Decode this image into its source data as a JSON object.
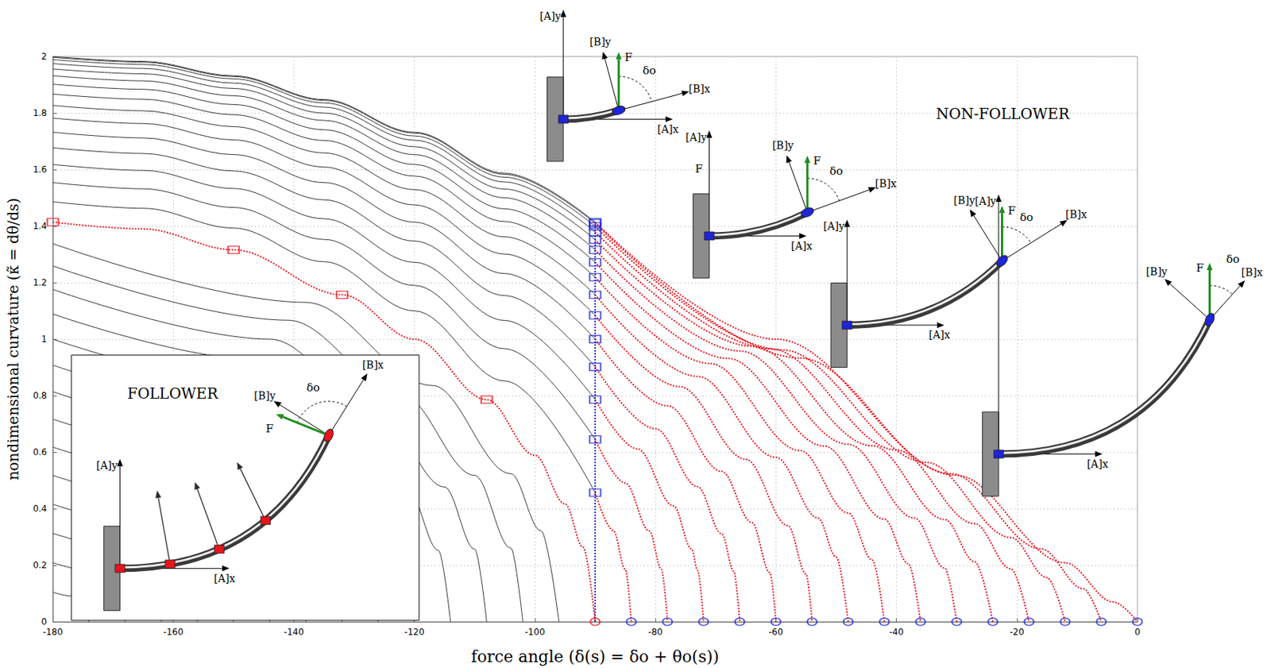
{
  "chart_data": {
    "type": "line",
    "x_label": "force angle (δ(s) = δo + θo(s))",
    "y_label": "nondimensional curvature (κ̃ = dθ/ds)",
    "xlim": [
      -180,
      0
    ],
    "xticks": [
      -180,
      -160,
      -140,
      -120,
      -100,
      -80,
      -60,
      -40,
      -20,
      0
    ],
    "ylim": [
      0,
      2
    ],
    "yticks": [
      0,
      0.2,
      0.4,
      0.6,
      0.8,
      1,
      1.2,
      1.4,
      1.6,
      1.8,
      2
    ],
    "grid": true,
    "annotations": {
      "non_follower": "NON-FOLLOWER",
      "follower": "FOLLOWER"
    },
    "diagram_labels": {
      "A_y": "[A]y",
      "A_x": "[A]x",
      "B_y": "[B]y",
      "B_x": "[B]x",
      "force": "F",
      "angle": "δo"
    },
    "series": [
      {
        "type": "line",
        "color": "#333333",
        "line_style": "solid",
        "marker": "none",
        "x": [
          -180,
          -165,
          -150,
          -135,
          -120,
          -105,
          -90
        ],
        "values": [
          2.0,
          1.983,
          1.932,
          1.848,
          1.732,
          1.587,
          1.414
        ]
      },
      {
        "type": "line",
        "color": "#333333",
        "line_style": "solid",
        "marker": "none",
        "x": [
          -180,
          -165,
          -150,
          -135,
          -120,
          -105,
          -90
        ],
        "values": [
          1.997,
          1.98,
          1.929,
          1.845,
          1.729,
          1.583,
          1.41
        ]
      },
      {
        "type": "line",
        "color": "#333333",
        "line_style": "solid",
        "marker": "none",
        "x": [
          -180,
          -165,
          -150,
          -135,
          -120,
          -105,
          -90
        ],
        "values": [
          1.989,
          1.972,
          1.921,
          1.836,
          1.719,
          1.573,
          1.399
        ]
      },
      {
        "type": "line",
        "color": "#333333",
        "line_style": "solid",
        "marker": "none",
        "x": [
          -180,
          -165,
          -150,
          -135,
          -120,
          -105,
          -90
        ],
        "values": [
          1.975,
          1.958,
          1.906,
          1.821,
          1.704,
          1.556,
          1.379
        ]
      },
      {
        "type": "line",
        "color": "#333333",
        "line_style": "solid",
        "marker": "none",
        "x": [
          -180,
          -165,
          -150,
          -135,
          -120,
          -105,
          -90
        ],
        "values": [
          1.956,
          1.939,
          1.887,
          1.8,
          1.681,
          1.531,
          1.352
        ]
      },
      {
        "type": "line",
        "color": "#333333",
        "line_style": "solid",
        "marker": "none",
        "x": [
          -180,
          -165,
          -150,
          -135,
          -120,
          -105,
          -90
        ],
        "values": [
          1.932,
          1.914,
          1.861,
          1.774,
          1.653,
          1.5,
          1.316
        ]
      },
      {
        "type": "line",
        "color": "#333333",
        "line_style": "solid",
        "marker": "none",
        "x": [
          -180,
          -165,
          -150,
          -135,
          -120,
          -105,
          -90
        ],
        "values": [
          1.902,
          1.884,
          1.83,
          1.741,
          1.618,
          1.461,
          1.272
        ]
      },
      {
        "type": "line",
        "color": "#333333",
        "line_style": "solid",
        "marker": "none",
        "x": [
          -180,
          -165,
          -150,
          -135,
          -120,
          -105,
          -90
        ],
        "values": [
          1.867,
          1.849,
          1.794,
          1.703,
          1.577,
          1.416,
          1.219
        ]
      },
      {
        "type": "line",
        "color": "#333333",
        "line_style": "solid",
        "marker": "none",
        "x": [
          -180,
          -165,
          -150,
          -135,
          -120,
          -105,
          -90
        ],
        "values": [
          1.827,
          1.808,
          1.752,
          1.659,
          1.529,
          1.362,
          1.157
        ]
      },
      {
        "type": "line",
        "color": "#333333",
        "line_style": "solid",
        "marker": "none",
        "x": [
          -180,
          -165,
          -150,
          -135,
          -120,
          -105,
          -90
        ],
        "values": [
          1.782,
          1.763,
          1.705,
          1.609,
          1.475,
          1.301,
          1.084
        ]
      },
      {
        "type": "line",
        "color": "#333333",
        "line_style": "solid",
        "marker": "none",
        "x": [
          -180,
          -165,
          -150,
          -135,
          -120,
          -105,
          -90
        ],
        "values": [
          1.732,
          1.712,
          1.653,
          1.554,
          1.414,
          1.232,
          1.0
        ]
      },
      {
        "type": "line",
        "color": "#333333",
        "line_style": "solid",
        "marker": "none",
        "x": [
          -180,
          -165,
          -150,
          -135,
          -120,
          -105,
          -90
        ],
        "values": [
          1.677,
          1.657,
          1.595,
          1.493,
          1.347,
          1.154,
          0.902
        ]
      },
      {
        "type": "line",
        "color": "#333333",
        "line_style": "solid",
        "marker": "none",
        "x": [
          -180,
          -165,
          -150,
          -135,
          -120,
          -105,
          -90
        ],
        "values": [
          1.618,
          1.597,
          1.533,
          1.426,
          1.272,
          1.066,
          0.786
        ]
      },
      {
        "type": "line",
        "color": "#333333",
        "line_style": "solid",
        "marker": "none",
        "x": [
          -180,
          -165,
          -150,
          -135,
          -120,
          -105,
          -90
        ],
        "values": [
          1.554,
          1.532,
          1.466,
          1.353,
          1.19,
          0.966,
          0.645
        ]
      },
      {
        "type": "line",
        "color": "#333333",
        "line_style": "solid",
        "marker": "none",
        "x": [
          -180,
          -165,
          -150,
          -135,
          -120,
          -105,
          -90
        ],
        "values": [
          1.486,
          1.463,
          1.393,
          1.274,
          1.1,
          0.852,
          0.457
        ]
      },
      {
        "type": "line",
        "color": "#333333",
        "line_style": "solid",
        "marker": "none",
        "x": [
          -180,
          -138,
          -117,
          -104,
          -99,
          -96
        ],
        "values": [
          1.338,
          1.13,
          0.836,
          0.524,
          0.322,
          0
        ]
      },
      {
        "type": "line",
        "color": "#333333",
        "line_style": "solid",
        "marker": "none",
        "x": [
          -180,
          -141,
          -122,
          -110,
          -104,
          -102
        ],
        "values": [
          1.259,
          1.067,
          0.802,
          0.518,
          0.261,
          0
        ]
      },
      {
        "type": "line",
        "color": "#333333",
        "line_style": "solid",
        "marker": "none",
        "x": [
          -180,
          -144,
          -126,
          -115,
          -110,
          -108
        ],
        "values": [
          1.176,
          1.0,
          0.747,
          0.477,
          0.257,
          0
        ]
      },
      {
        "type": "line",
        "color": "#333333",
        "line_style": "solid",
        "marker": "none",
        "x": [
          -180,
          -147,
          -130,
          -121,
          -116,
          -114
        ],
        "values": [
          1.089,
          0.93,
          0.687,
          0.465,
          0.252,
          0
        ]
      },
      {
        "type": "line",
        "color": "#333333",
        "line_style": "solid",
        "marker": "none",
        "x": [
          -180,
          -150,
          -135,
          -126,
          -122,
          -120
        ],
        "values": [
          1.0,
          0.856,
          0.644,
          0.419,
          0.245,
          0
        ]
      },
      {
        "type": "line",
        "color": "#333333",
        "line_style": "solid",
        "marker": "none",
        "x": [
          -180,
          -153,
          -140,
          -131,
          -128,
          -126
        ],
        "values": [
          0.908,
          0.779,
          0.597,
          0.37,
          0.236,
          0
        ]
      },
      {
        "type": "line",
        "color": "#333333",
        "line_style": "solid",
        "marker": "none",
        "x": [
          -180,
          -156,
          -144,
          -137,
          -134,
          -132
        ],
        "values": [
          0.814,
          0.699,
          0.529,
          0.353,
          0.226,
          0
        ]
      },
      {
        "type": "line",
        "color": "#333333",
        "line_style": "solid",
        "marker": "none",
        "x": [
          -180,
          -159,
          -148,
          -142,
          -139,
          -138
        ],
        "values": [
          0.717,
          0.617,
          0.458,
          0.3,
          0.152,
          0
        ]
      },
      {
        "type": "line",
        "color": "#333333",
        "line_style": "solid",
        "marker": "none",
        "x": [
          -180,
          -162,
          -153,
          -148,
          -145,
          -144
        ],
        "values": [
          0.618,
          0.533,
          0.405,
          0.279,
          0.143,
          0
        ]
      },
      {
        "type": "line",
        "color": "#333333",
        "line_style": "solid",
        "marker": "none",
        "x": [
          -180,
          -165,
          -157,
          -153,
          -151,
          -150
        ],
        "values": [
          0.518,
          0.447,
          0.33,
          0.224,
          0.131,
          0
        ]
      },
      {
        "type": "line",
        "color": "#333333",
        "line_style": "solid",
        "marker": "none",
        "x": [
          -180,
          -168,
          -162,
          -158,
          -157,
          -156
        ],
        "values": [
          0.416,
          0.359,
          0.274,
          0.166,
          0.118,
          0
        ]
      },
      {
        "type": "line",
        "color": "#333333",
        "line_style": "solid",
        "marker": "none",
        "x": [
          -180,
          -171,
          -166,
          -164,
          -163,
          -162
        ],
        "values": [
          0.313,
          0.271,
          0.196,
          0.143,
          0.102,
          0
        ]
      },
      {
        "type": "line",
        "color": "#333333",
        "line_style": "solid",
        "marker": "none",
        "x": [
          -180,
          -174,
          -171,
          -169,
          -168
        ],
        "values": [
          0.209,
          0.181,
          0.139,
          0.084,
          0
        ]
      },
      {
        "type": "line",
        "color": "#333333",
        "line_style": "solid",
        "marker": "none",
        "x": [
          -180,
          -177,
          -175,
          -174
        ],
        "values": [
          0.105,
          0.091,
          0.058,
          0
        ]
      },
      {
        "type": "line",
        "color": "#e8141c",
        "line_style": "dotted",
        "marker": "none",
        "x": [
          -180,
          -165,
          -150,
          -132,
          -120,
          -108,
          -100,
          -95,
          -92,
          -90
        ],
        "values": [
          1.414,
          1.39,
          1.316,
          1.157,
          1.0,
          0.786,
          0.589,
          0.417,
          0.264,
          0
        ]
      },
      {
        "type": "line",
        "color": "#e8141c",
        "line_style": "dotted",
        "marker": "none",
        "x": [
          -90,
          -60,
          -30,
          -12,
          -4,
          0
        ],
        "values": [
          1.414,
          1.0,
          0.518,
          0.209,
          0.07,
          0
        ]
      },
      {
        "type": "line",
        "color": "#e8141c",
        "line_style": "dotted",
        "marker": "none",
        "x": [
          -90,
          -56,
          -31,
          -16,
          -9,
          -6
        ],
        "values": [
          1.41,
          0.933,
          0.524,
          0.258,
          0.117,
          0
        ]
      },
      {
        "type": "line",
        "color": "#e8141c",
        "line_style": "dotted",
        "marker": "none",
        "x": [
          -90,
          -59,
          -35,
          -21,
          -15,
          -12
        ],
        "values": [
          1.399,
          0.962,
          0.564,
          0.298,
          0.156,
          0
        ]
      },
      {
        "type": "line",
        "color": "#e8141c",
        "line_style": "dotted",
        "marker": "none",
        "x": [
          -90,
          -61,
          -40,
          -27,
          -21,
          -18
        ],
        "values": [
          1.379,
          0.966,
          0.608,
          0.347,
          0.187,
          0
        ]
      },
      {
        "type": "line",
        "color": "#e8141c",
        "line_style": "dotted",
        "marker": "none",
        "x": [
          -90,
          -64,
          -44,
          -32,
          -27,
          -24
        ],
        "values": [
          1.352,
          0.975,
          0.623,
          0.362,
          0.212,
          0
        ]
      },
      {
        "type": "line",
        "color": "#e8141c",
        "line_style": "dotted",
        "marker": "none",
        "x": [
          -90,
          -66,
          -48,
          -37,
          -32,
          -30
        ],
        "values": [
          1.316,
          0.958,
          0.628,
          0.367,
          0.19,
          0
        ]
      },
      {
        "type": "line",
        "color": "#e8141c",
        "line_style": "dotted",
        "marker": "none",
        "x": [
          -90,
          -68,
          -52,
          -42,
          -38,
          -36
        ],
        "values": [
          1.272,
          0.932,
          0.622,
          0.363,
          0.205,
          0
        ]
      },
      {
        "type": "line",
        "color": "#e8141c",
        "line_style": "dotted",
        "marker": "none",
        "x": [
          -90,
          -71,
          -56,
          -48,
          -44,
          -42
        ],
        "values": [
          1.219,
          0.914,
          0.606,
          0.385,
          0.218,
          0
        ]
      },
      {
        "type": "line",
        "color": "#e8141c",
        "line_style": "dotted",
        "marker": "none",
        "x": [
          -90,
          -73,
          -60,
          -53,
          -50,
          -48
        ],
        "values": [
          1.157,
          0.868,
          0.582,
          0.367,
          0.229,
          0
        ]
      },
      {
        "type": "line",
        "color": "#e8141c",
        "line_style": "dotted",
        "marker": "none",
        "x": [
          -90,
          -76,
          -65,
          -58,
          -55,
          -54
        ],
        "values": [
          1.084,
          0.832,
          0.575,
          0.34,
          0.169,
          0
        ]
      },
      {
        "type": "line",
        "color": "#e8141c",
        "line_style": "dotted",
        "marker": "none",
        "x": [
          -90,
          -78,
          -69,
          -64,
          -61,
          -60
        ],
        "values": [
          1.0,
          0.764,
          0.532,
          0.351,
          0.174,
          0
        ]
      },
      {
        "type": "line",
        "color": "#e8141c",
        "line_style": "dotted",
        "marker": "none",
        "x": [
          -90,
          -80,
          -73,
          -69,
          -67,
          -66
        ],
        "values": [
          0.902,
          0.683,
          0.478,
          0.311,
          0.179,
          0
        ]
      },
      {
        "type": "line",
        "color": "#e8141c",
        "line_style": "dotted",
        "marker": "none",
        "x": [
          -90,
          -83,
          -77,
          -74,
          -73,
          -72
        ],
        "values": [
          0.786,
          0.612,
          0.41,
          0.258,
          0.182,
          0
        ]
      },
      {
        "type": "line",
        "color": "#e8141c",
        "line_style": "dotted",
        "marker": "none",
        "x": [
          -90,
          -85,
          -81,
          -79,
          -78
        ],
        "values": [
          0.645,
          0.491,
          0.321,
          0.185,
          0
        ]
      },
      {
        "type": "line",
        "color": "#e8141c",
        "line_style": "dotted",
        "marker": "none",
        "x": [
          -90,
          -87,
          -85,
          -84
        ],
        "values": [
          0.457,
          0.323,
          0.186,
          0
        ]
      },
      {
        "type": "line",
        "color": "#1f24d6",
        "line_style": "dotted",
        "marker": "none",
        "x": [
          -90,
          -90
        ],
        "values": [
          0,
          1.414
        ]
      },
      {
        "type": "scatter",
        "color": "#e8141c",
        "marker": "hollow_square",
        "x": [
          -180,
          -150,
          -132,
          -108
        ],
        "values": [
          1.414,
          1.316,
          1.157,
          0.786
        ]
      },
      {
        "type": "scatter",
        "color": "#1f24d6",
        "marker": "hollow_square",
        "x": [
          -90,
          -90,
          -90,
          -90,
          -90,
          -90,
          -90,
          -90,
          -90,
          -90,
          -90,
          -90,
          -90,
          -90,
          -90
        ],
        "values": [
          1.414,
          1.41,
          1.399,
          1.379,
          1.352,
          1.316,
          1.272,
          1.219,
          1.157,
          1.084,
          1.0,
          0.902,
          0.786,
          0.645,
          0.457
        ]
      },
      {
        "type": "scatter",
        "color": "#1f24d6",
        "marker": "hollow_circle",
        "x": [
          -84,
          -78,
          -72,
          -66,
          -60,
          -54,
          -48,
          -42,
          -36,
          -30,
          -24,
          -18,
          -12,
          -6,
          0
        ],
        "values": [
          0,
          0,
          0,
          0,
          0,
          0,
          0,
          0,
          0,
          0,
          0,
          0,
          0,
          0,
          0
        ]
      },
      {
        "type": "scatter",
        "color": "#e8141c",
        "marker": "hollow_circle",
        "x": [
          -90
        ],
        "values": [
          0
        ]
      }
    ]
  }
}
